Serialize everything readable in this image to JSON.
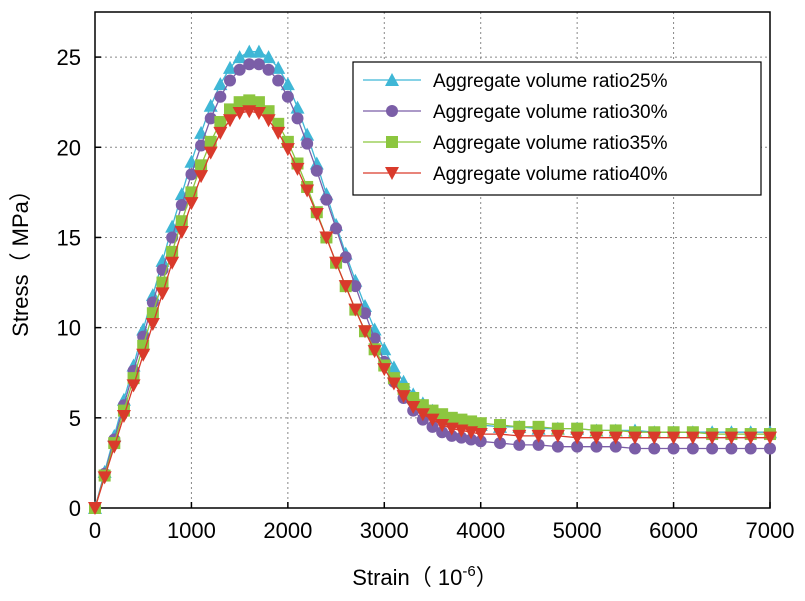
{
  "chart_data": {
    "type": "line",
    "xlabel": "Strain（ 10",
    "xlabel_exp": "-6",
    "xlabel_close": "）",
    "ylabel": "Stress（ MPa）",
    "xlim": [
      0,
      7000
    ],
    "ylim": [
      0,
      27.5
    ],
    "xticks": [
      0,
      1000,
      2000,
      3000,
      4000,
      5000,
      6000,
      7000
    ],
    "yticks": [
      0,
      5,
      10,
      15,
      20,
      25
    ],
    "grid": true,
    "legend_position": "top-right",
    "series": [
      {
        "name": "Aggregate volume ratio25%",
        "color": "#3fb7d6",
        "marker": "triangle-up",
        "x": [
          0,
          100,
          200,
          300,
          400,
          500,
          600,
          700,
          800,
          900,
          1000,
          1100,
          1200,
          1300,
          1400,
          1500,
          1600,
          1700,
          1800,
          1900,
          2000,
          2100,
          2200,
          2300,
          2400,
          2500,
          2600,
          2700,
          2800,
          2900,
          3000,
          3100,
          3200,
          3300,
          3400,
          3500,
          3600,
          3700,
          3800,
          3900,
          4000,
          4200,
          4400,
          4600,
          4800,
          5000,
          5200,
          5400,
          5600,
          5800,
          6000,
          6200,
          6400,
          6600,
          6800,
          7000
        ],
        "y": [
          0,
          2.0,
          4.0,
          6.0,
          7.9,
          9.9,
          11.8,
          13.7,
          15.6,
          17.4,
          19.2,
          20.8,
          22.3,
          23.5,
          24.4,
          25.0,
          25.3,
          25.3,
          25.0,
          24.4,
          23.5,
          22.2,
          20.7,
          19.1,
          17.4,
          15.7,
          14.1,
          12.6,
          11.2,
          9.9,
          8.8,
          7.8,
          7.0,
          6.3,
          5.8,
          5.4,
          5.1,
          4.9,
          4.8,
          4.7,
          4.6,
          4.5,
          4.5,
          4.4,
          4.4,
          4.4,
          4.3,
          4.3,
          4.3,
          4.2,
          4.2,
          4.2,
          4.2,
          4.2,
          4.2,
          4.2
        ]
      },
      {
        "name": "Aggregate volume ratio30%",
        "color": "#7b5ea7",
        "marker": "circle",
        "x": [
          0,
          100,
          200,
          300,
          400,
          500,
          600,
          700,
          800,
          900,
          1000,
          1100,
          1200,
          1300,
          1400,
          1500,
          1600,
          1700,
          1800,
          1900,
          2000,
          2100,
          2200,
          2300,
          2400,
          2500,
          2600,
          2700,
          2800,
          2900,
          3000,
          3100,
          3200,
          3300,
          3400,
          3500,
          3600,
          3700,
          3800,
          3900,
          4000,
          4200,
          4400,
          4600,
          4800,
          5000,
          5200,
          5400,
          5600,
          5800,
          6000,
          6200,
          6400,
          6600,
          6800,
          7000
        ],
        "y": [
          0,
          1.9,
          3.8,
          5.7,
          7.6,
          9.5,
          11.4,
          13.2,
          15.0,
          16.8,
          18.5,
          20.1,
          21.6,
          22.8,
          23.7,
          24.3,
          24.6,
          24.6,
          24.3,
          23.7,
          22.8,
          21.6,
          20.2,
          18.7,
          17.1,
          15.5,
          13.9,
          12.3,
          10.8,
          9.4,
          8.1,
          7.0,
          6.1,
          5.4,
          4.9,
          4.5,
          4.2,
          4.0,
          3.9,
          3.8,
          3.7,
          3.6,
          3.5,
          3.5,
          3.4,
          3.4,
          3.4,
          3.4,
          3.3,
          3.3,
          3.3,
          3.3,
          3.3,
          3.3,
          3.3,
          3.3
        ]
      },
      {
        "name": "Aggregate volume ratio35%",
        "color": "#8cc63f",
        "marker": "square",
        "x": [
          0,
          100,
          200,
          300,
          400,
          500,
          600,
          700,
          800,
          900,
          1000,
          1100,
          1200,
          1300,
          1400,
          1500,
          1600,
          1700,
          1800,
          1900,
          2000,
          2100,
          2200,
          2300,
          2400,
          2500,
          2600,
          2700,
          2800,
          2900,
          3000,
          3100,
          3200,
          3300,
          3400,
          3500,
          3600,
          3700,
          3800,
          3900,
          4000,
          4200,
          4400,
          4600,
          4800,
          5000,
          5200,
          5400,
          5600,
          5800,
          6000,
          6200,
          6400,
          6600,
          6800,
          7000
        ],
        "y": [
          0,
          1.8,
          3.6,
          5.4,
          7.2,
          9.0,
          10.8,
          12.5,
          14.2,
          15.9,
          17.5,
          19.0,
          20.3,
          21.4,
          22.1,
          22.5,
          22.6,
          22.5,
          22.0,
          21.3,
          20.3,
          19.1,
          17.8,
          16.4,
          15.0,
          13.6,
          12.3,
          11.0,
          9.8,
          8.8,
          7.9,
          7.2,
          6.6,
          6.1,
          5.7,
          5.4,
          5.2,
          5.0,
          4.9,
          4.8,
          4.7,
          4.6,
          4.5,
          4.5,
          4.4,
          4.4,
          4.3,
          4.3,
          4.2,
          4.2,
          4.2,
          4.2,
          4.1,
          4.1,
          4.1,
          4.1
        ]
      },
      {
        "name": "Aggregate volume ratio40%",
        "color": "#d93a2b",
        "marker": "triangle-down",
        "x": [
          0,
          100,
          200,
          300,
          400,
          500,
          600,
          700,
          800,
          900,
          1000,
          1100,
          1200,
          1300,
          1400,
          1500,
          1600,
          1700,
          1800,
          1900,
          2000,
          2100,
          2200,
          2300,
          2400,
          2500,
          2600,
          2700,
          2800,
          2900,
          3000,
          3100,
          3200,
          3300,
          3400,
          3500,
          3600,
          3700,
          3800,
          3900,
          4000,
          4200,
          4400,
          4600,
          4800,
          5000,
          5200,
          5400,
          5600,
          5800,
          6000,
          6200,
          6400,
          6600,
          6800,
          7000
        ],
        "y": [
          0,
          1.7,
          3.4,
          5.1,
          6.8,
          8.5,
          10.2,
          11.9,
          13.6,
          15.3,
          16.9,
          18.4,
          19.7,
          20.8,
          21.5,
          21.9,
          22.0,
          21.9,
          21.5,
          20.8,
          19.9,
          18.8,
          17.6,
          16.3,
          15.0,
          13.6,
          12.3,
          11.0,
          9.8,
          8.7,
          7.7,
          6.9,
          6.2,
          5.6,
          5.2,
          4.9,
          4.6,
          4.4,
          4.3,
          4.2,
          4.1,
          4.1,
          4.0,
          4.0,
          4.0,
          3.9,
          3.9,
          3.9,
          3.9,
          3.9,
          3.9,
          3.9,
          3.9,
          3.9,
          3.9,
          3.9
        ]
      }
    ]
  }
}
